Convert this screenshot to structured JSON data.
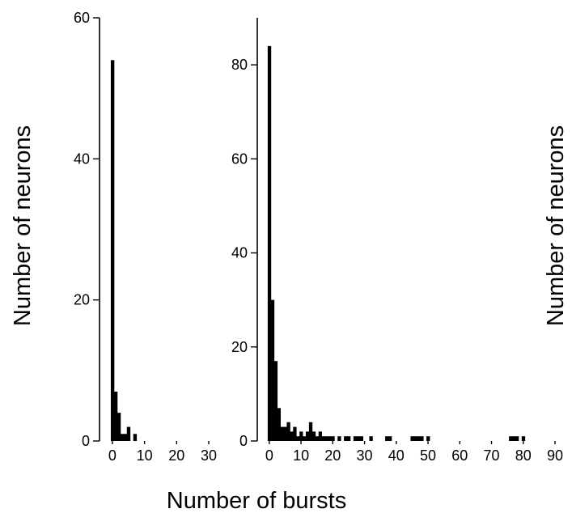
{
  "xlabel": "Number of bursts",
  "ylabel_left": "Number of neurons",
  "ylabel_right": "Number of neurons",
  "chart_data": [
    {
      "type": "bar",
      "title": "",
      "xlabel": "Number of bursts",
      "ylabel": "Number of neurons",
      "xlim": [
        -2,
        30
      ],
      "ylim": [
        0,
        60
      ],
      "xticks": [
        0,
        10,
        20,
        30
      ],
      "yticks": [
        0,
        20,
        40,
        60
      ],
      "bin_width": 1,
      "x": [
        0,
        1,
        2,
        3,
        4,
        5,
        6,
        7
      ],
      "values": [
        54,
        7,
        4,
        1,
        1,
        2,
        0,
        1
      ],
      "grid": false,
      "legend": "none"
    },
    {
      "type": "bar",
      "title": "",
      "xlabel": "Number of bursts",
      "ylabel": "Number of neurons",
      "xlim": [
        -2,
        90
      ],
      "ylim": [
        0,
        90
      ],
      "xticks": [
        0,
        10,
        20,
        30,
        40,
        50,
        60,
        70,
        80,
        90
      ],
      "yticks": [
        0,
        20,
        40,
        60,
        80
      ],
      "bin_width": 1,
      "x": [
        0,
        1,
        2,
        3,
        4,
        5,
        6,
        7,
        8,
        9,
        10,
        11,
        12,
        13,
        14,
        15,
        16,
        17,
        18,
        19,
        20,
        22,
        24,
        25,
        27,
        28,
        29,
        32,
        37,
        38,
        45,
        46,
        47,
        48,
        50,
        76,
        77,
        78,
        80
      ],
      "values": [
        84,
        30,
        17,
        7,
        3,
        3,
        4,
        2,
        3,
        1,
        2,
        1,
        2,
        4,
        2,
        1,
        2,
        1,
        1,
        1,
        1,
        1,
        1,
        1,
        1,
        1,
        1,
        1,
        1,
        1,
        1,
        1,
        1,
        1,
        1,
        1,
        1,
        1,
        1
      ],
      "grid": false,
      "legend": "none"
    }
  ]
}
